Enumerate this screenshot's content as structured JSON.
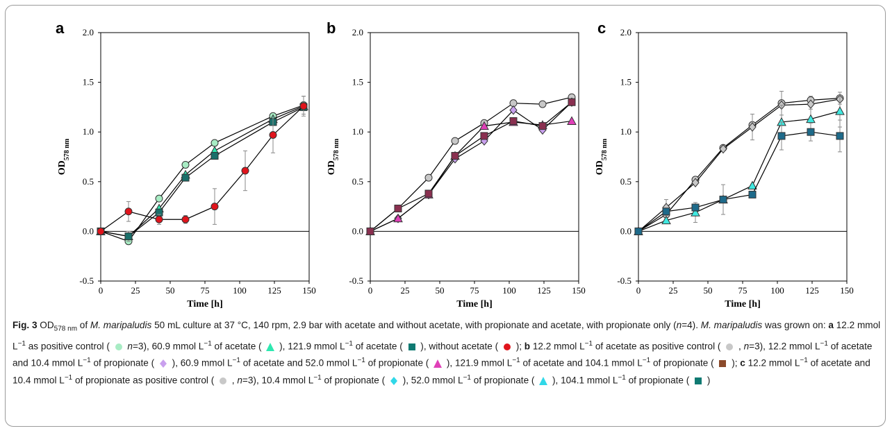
{
  "colors": {
    "light_green": "#a8ecc4",
    "dark_teal": "#1a6f6a",
    "red": "#e0141c",
    "grey": "#c8c8c8",
    "lavender": "#c9a0ee",
    "magenta": "#e040b8",
    "maroon": "#8a3050",
    "cyan": "#40e8e0",
    "steel_blue": "#1e6a8a",
    "caption_maroon": "#8b4a2b",
    "caption_teal": "#0f7a72"
  },
  "caption": {
    "fig_label": "Fig. 3",
    "segments": [
      {
        "t": " OD"
      },
      {
        "sub": "578 nm"
      },
      {
        "t": " of "
      },
      {
        "i": "M. maripaludis"
      },
      {
        "t": " 50 mL culture at 37 °C, 140 rpm, 2.9 bar with acetate and without acetate, with propionate and acetate, with propionate only ("
      },
      {
        "i": "n"
      },
      {
        "t": "=4). "
      },
      {
        "i": "M. maripaludis"
      },
      {
        "t": " was grown on: "
      },
      {
        "b": "a"
      },
      {
        "t": " 12.2 mmol L"
      },
      {
        "sup": "−1"
      },
      {
        "t": " as positive control ( "
      },
      {
        "sym": "circle",
        "color": "#a8ecc4"
      },
      {
        "t": " "
      },
      {
        "i": "n"
      },
      {
        "t": "=3), 60.9 mmol L"
      },
      {
        "sup": "−1"
      },
      {
        "t": " of acetate ( "
      },
      {
        "sym": "triangle",
        "color": "#2ee8b0"
      },
      {
        "t": " ), 121.9 mmol L"
      },
      {
        "sup": "−1"
      },
      {
        "t": " of acetate ( "
      },
      {
        "sym": "square",
        "color": "#0f7a72"
      },
      {
        "t": " ), without acetate ( "
      },
      {
        "sym": "circle",
        "color": "#e0141c"
      },
      {
        "t": " ); "
      },
      {
        "b": "b"
      },
      {
        "t": " 12.2 mmol L"
      },
      {
        "sup": "−1"
      },
      {
        "t": " of acetate as positive control ( "
      },
      {
        "sym": "circle",
        "color": "#c8c8c8"
      },
      {
        "t": " , "
      },
      {
        "i": "n"
      },
      {
        "t": "=3), 12.2 mmol L"
      },
      {
        "sup": "−1"
      },
      {
        "t": " of acetate and 10.4 mmol L"
      },
      {
        "sup": "−1"
      },
      {
        "t": " of propionate ( "
      },
      {
        "sym": "diamond",
        "color": "#c9a0ee"
      },
      {
        "t": " ), 60.9 mmol L"
      },
      {
        "sup": "−1"
      },
      {
        "t": " of acetate and 52.0 mmol L"
      },
      {
        "sup": "−1"
      },
      {
        "t": " of propionate ( "
      },
      {
        "sym": "triangle",
        "color": "#e040b8"
      },
      {
        "t": " ), 121.9 mmol L"
      },
      {
        "sup": "−1"
      },
      {
        "t": " of acetate and 104.1 mmol L"
      },
      {
        "sup": "−1"
      },
      {
        "t": " of propionate ( "
      },
      {
        "sym": "square",
        "color": "#8b4a2b"
      },
      {
        "t": " ); "
      },
      {
        "b": "c"
      },
      {
        "t": " 12.2 mmol L"
      },
      {
        "sup": "−1"
      },
      {
        "t": " of acetate and 10.4 mmol L"
      },
      {
        "sup": "−1"
      },
      {
        "t": " of propionate as positive control ( "
      },
      {
        "sym": "circle",
        "color": "#c8c8c8"
      },
      {
        "t": " , "
      },
      {
        "i": "n"
      },
      {
        "t": "=3), 10.4 mmol L"
      },
      {
        "sup": "−1"
      },
      {
        "t": " of propionate ( "
      },
      {
        "sym": "diamond",
        "color": "#30d8e8"
      },
      {
        "t": " ), 52.0 mmol L"
      },
      {
        "sup": "−1"
      },
      {
        "t": " of propionate ( "
      },
      {
        "sym": "triangle",
        "color": "#30d8e8"
      },
      {
        "t": " ), 104.1 mmol L"
      },
      {
        "sup": "−1"
      },
      {
        "t": " of propionate ( "
      },
      {
        "sym": "square",
        "color": "#0f7a72"
      },
      {
        "t": " )"
      }
    ]
  },
  "chart_data": [
    {
      "panel": "a",
      "type": "line",
      "xlabel": "Time [h]",
      "ylabel_main": "OD",
      "ylabel_sub": "578 nm",
      "xlim": [
        0,
        150
      ],
      "ylim": [
        -0.5,
        2.0
      ],
      "xticks": [
        0,
        25,
        50,
        75,
        100,
        125,
        150
      ],
      "yticks": [
        -0.5,
        0.0,
        0.5,
        1.0,
        1.5,
        2.0
      ],
      "ytick_labels": [
        "-0.5",
        "0.0",
        "0.5",
        "1.0",
        "1.5",
        "2.0"
      ],
      "series": [
        {
          "marker": "circle",
          "color": "#a8ecc4",
          "x": [
            0,
            20,
            42,
            61,
            82,
            124,
            146
          ],
          "y": [
            0,
            -0.1,
            0.33,
            0.67,
            0.89,
            1.16,
            1.27
          ],
          "err": [
            0,
            0,
            0,
            0,
            0,
            0,
            0.09
          ]
        },
        {
          "marker": "triangle",
          "color": "#2ee8b0",
          "x": [
            0,
            20,
            42,
            61,
            82,
            124,
            146
          ],
          "y": [
            0,
            -0.05,
            0.23,
            0.57,
            0.81,
            1.13,
            1.26
          ],
          "err": [
            0,
            0,
            0,
            0,
            0,
            0,
            0
          ]
        },
        {
          "marker": "square",
          "color": "#1a6f6a",
          "x": [
            0,
            20,
            42,
            61,
            82,
            124,
            146
          ],
          "y": [
            0,
            -0.05,
            0.19,
            0.54,
            0.76,
            1.1,
            1.25
          ],
          "err": [
            0,
            0.05,
            0.03,
            0,
            0,
            0,
            0
          ]
        },
        {
          "marker": "circle",
          "color": "#e0141c",
          "x": [
            0,
            20,
            42,
            61,
            82,
            104,
            124,
            146
          ],
          "y": [
            0,
            0.2,
            0.12,
            0.12,
            0.25,
            0.61,
            0.97,
            1.26
          ],
          "err": [
            0,
            0.1,
            0.05,
            0.04,
            0.18,
            0.2,
            0.18,
            0.1
          ]
        }
      ]
    },
    {
      "panel": "b",
      "type": "line",
      "xlabel": "Time [h]",
      "ylabel_main": "OD",
      "ylabel_sub": "578 nm",
      "xlim": [
        0,
        150
      ],
      "ylim": [
        -0.5,
        2.0
      ],
      "xticks": [
        0,
        25,
        50,
        75,
        100,
        125,
        150
      ],
      "yticks": [
        -0.5,
        0.0,
        0.5,
        1.0,
        1.5,
        2.0
      ],
      "ytick_labels": [
        "-0.5",
        "0.0",
        "0.5",
        "1.0",
        "1.5",
        "2.0"
      ],
      "series": [
        {
          "marker": "circle",
          "color": "#c8c8c8",
          "x": [
            0,
            20,
            42,
            61,
            82,
            103,
            124,
            145
          ],
          "y": [
            0,
            0.23,
            0.54,
            0.91,
            1.09,
            1.29,
            1.28,
            1.35
          ],
          "err": [
            0,
            0,
            0,
            0,
            0,
            0,
            0,
            0
          ]
        },
        {
          "marker": "diamond",
          "color": "#c9a0ee",
          "x": [
            0,
            20,
            42,
            61,
            82,
            103,
            124,
            145
          ],
          "y": [
            0,
            0.13,
            0.37,
            0.73,
            0.91,
            1.22,
            1.02,
            1.3
          ],
          "err": [
            0,
            0,
            0,
            0,
            0,
            0,
            0,
            0
          ]
        },
        {
          "marker": "triangle",
          "color": "#e040b8",
          "x": [
            0,
            20,
            42,
            61,
            82,
            103,
            124,
            145
          ],
          "y": [
            0,
            0.13,
            0.37,
            0.76,
            1.06,
            1.1,
            1.07,
            1.11
          ],
          "err": [
            0,
            0,
            0,
            0,
            0,
            0,
            0,
            0
          ]
        },
        {
          "marker": "square",
          "color": "#8a3050",
          "x": [
            0,
            20,
            42,
            61,
            82,
            103,
            124,
            145
          ],
          "y": [
            0,
            0.23,
            0.38,
            0.76,
            0.96,
            1.11,
            1.06,
            1.3
          ],
          "err": [
            0,
            0,
            0,
            0,
            0,
            0,
            0,
            0
          ]
        }
      ]
    },
    {
      "panel": "c",
      "type": "line",
      "xlabel": "Time [h]",
      "ylabel_main": "OD",
      "ylabel_sub": "578 nm",
      "xlim": [
        0,
        150
      ],
      "ylim": [
        -0.5,
        2.0
      ],
      "xticks": [
        0,
        25,
        50,
        75,
        100,
        125,
        150
      ],
      "yticks": [
        -0.5,
        0.0,
        0.5,
        1.0,
        1.5,
        2.0
      ],
      "ytick_labels": [
        "-0.5",
        "0.0",
        "0.5",
        "1.0",
        "1.5",
        "2.0"
      ],
      "series": [
        {
          "marker": "circle",
          "color": "#c8c8c8",
          "x": [
            0,
            20,
            41,
            61,
            82,
            103,
            124,
            145
          ],
          "y": [
            0,
            0.17,
            0.52,
            0.84,
            1.07,
            1.29,
            1.32,
            1.34
          ],
          "err": [
            0,
            0,
            0,
            0,
            0,
            0.12,
            0.04,
            0.06
          ]
        },
        {
          "marker": "diamond",
          "color": "#c8c8c8",
          "x": [
            0,
            20,
            41,
            61,
            82,
            103,
            124,
            145
          ],
          "y": [
            0,
            0.24,
            0.49,
            0.83,
            1.05,
            1.27,
            1.28,
            1.33
          ],
          "err": [
            0,
            0.08,
            0,
            0,
            0.13,
            0,
            0,
            0
          ]
        },
        {
          "marker": "triangle",
          "color": "#40e8e0",
          "x": [
            0,
            20,
            41,
            61,
            82,
            103,
            124,
            145
          ],
          "y": [
            0,
            0.11,
            0.19,
            0.32,
            0.46,
            1.1,
            1.13,
            1.21
          ],
          "err": [
            0,
            0,
            0.1,
            0.15,
            0,
            0.17,
            0.1,
            0.16
          ]
        },
        {
          "marker": "square",
          "color": "#1e6a8a",
          "x": [
            0,
            20,
            41,
            61,
            82,
            103,
            124,
            145
          ],
          "y": [
            0,
            0.2,
            0.24,
            0.32,
            0.37,
            0.96,
            1.0,
            0.96
          ],
          "err": [
            0,
            0,
            0,
            0,
            0,
            0.14,
            0.09,
            0.16
          ]
        }
      ]
    }
  ]
}
